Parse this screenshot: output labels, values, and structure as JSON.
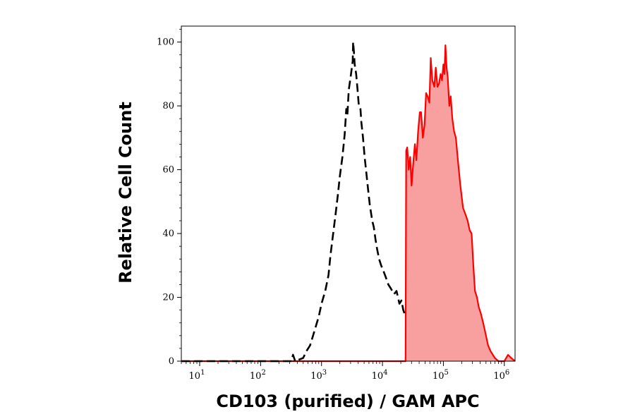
{
  "chart_data": {
    "type": "area",
    "xlabel": "CD103 (purified) / GAM APC",
    "ylabel": "Relative Cell Count",
    "x_scale": "log",
    "xlim": [
      5,
      1500000
    ],
    "ylim": [
      0,
      105
    ],
    "x_tick_labels": [
      {
        "base": "10",
        "exp": "1",
        "value": 10
      },
      {
        "base": "10",
        "exp": "2",
        "value": 100
      },
      {
        "base": "10",
        "exp": "3",
        "value": 1000
      },
      {
        "base": "10",
        "exp": "4",
        "value": 10000
      },
      {
        "base": "10",
        "exp": "5",
        "value": 100000
      },
      {
        "base": "10",
        "exp": "6",
        "value": 1000000
      }
    ],
    "y_ticks": [
      0,
      20,
      40,
      60,
      80,
      100
    ],
    "grid": false,
    "legend": "none",
    "series": [
      {
        "style": "dashed",
        "color": "#000000",
        "filled": false,
        "points": [
          [
            5,
            0
          ],
          [
            320,
            0
          ],
          [
            340,
            2
          ],
          [
            370,
            0
          ],
          [
            500,
            1
          ],
          [
            560,
            3
          ],
          [
            650,
            5
          ],
          [
            780,
            10
          ],
          [
            900,
            14
          ],
          [
            1000,
            18
          ],
          [
            1150,
            22
          ],
          [
            1300,
            27
          ],
          [
            1400,
            33
          ],
          [
            1550,
            40
          ],
          [
            1700,
            46
          ],
          [
            1850,
            52
          ],
          [
            2000,
            58
          ],
          [
            2200,
            64
          ],
          [
            2400,
            71
          ],
          [
            2550,
            79
          ],
          [
            2650,
            77
          ],
          [
            2800,
            85
          ],
          [
            3000,
            89
          ],
          [
            3150,
            92
          ],
          [
            3250,
            94
          ],
          [
            3300,
            100
          ],
          [
            3400,
            97
          ],
          [
            3500,
            93
          ],
          [
            3700,
            90
          ],
          [
            3900,
            85
          ],
          [
            4100,
            80
          ],
          [
            4350,
            79
          ],
          [
            4500,
            75
          ],
          [
            4800,
            70
          ],
          [
            5100,
            64
          ],
          [
            5500,
            58
          ],
          [
            5800,
            54
          ],
          [
            6200,
            49
          ],
          [
            6800,
            44
          ],
          [
            7200,
            42
          ],
          [
            7700,
            38
          ],
          [
            8200,
            35
          ],
          [
            8800,
            32
          ],
          [
            9500,
            30
          ],
          [
            10500,
            28
          ],
          [
            11500,
            26
          ],
          [
            12500,
            24
          ],
          [
            13500,
            23
          ],
          [
            14500,
            22
          ],
          [
            15500,
            21
          ],
          [
            17000,
            22
          ],
          [
            18000,
            20
          ],
          [
            19000,
            18
          ],
          [
            20500,
            19
          ],
          [
            22000,
            16
          ],
          [
            24000,
            14
          ]
        ]
      },
      {
        "style": "solid",
        "color": "#ff0000",
        "fill": "#f8a0a0",
        "filled": true,
        "points": [
          [
            5,
            0
          ],
          [
            23900,
            0
          ],
          [
            24500,
            66
          ],
          [
            25500,
            67
          ],
          [
            27000,
            60
          ],
          [
            28500,
            64
          ],
          [
            30000,
            55
          ],
          [
            32000,
            62
          ],
          [
            34000,
            68
          ],
          [
            36000,
            63
          ],
          [
            38500,
            72
          ],
          [
            41000,
            78
          ],
          [
            43000,
            78
          ],
          [
            46000,
            70
          ],
          [
            49000,
            74
          ],
          [
            52000,
            84
          ],
          [
            55000,
            83
          ],
          [
            59000,
            81
          ],
          [
            62000,
            95
          ],
          [
            66000,
            88
          ],
          [
            71000,
            86
          ],
          [
            75000,
            92
          ],
          [
            80000,
            86
          ],
          [
            85000,
            87
          ],
          [
            90000,
            90
          ],
          [
            95000,
            88
          ],
          [
            100000,
            93
          ],
          [
            104000,
            90
          ],
          [
            108000,
            99
          ],
          [
            113000,
            92
          ],
          [
            118000,
            89
          ],
          [
            125000,
            80
          ],
          [
            132000,
            83
          ],
          [
            140000,
            76
          ],
          [
            150000,
            72
          ],
          [
            160000,
            70
          ],
          [
            175000,
            62
          ],
          [
            190000,
            55
          ],
          [
            210000,
            48
          ],
          [
            230000,
            46
          ],
          [
            250000,
            44
          ],
          [
            270000,
            41
          ],
          [
            290000,
            40
          ],
          [
            310000,
            30
          ],
          [
            330000,
            22
          ],
          [
            355000,
            20
          ],
          [
            380000,
            17
          ],
          [
            410000,
            15
          ],
          [
            450000,
            12
          ],
          [
            500000,
            8
          ],
          [
            540000,
            5
          ],
          [
            600000,
            3
          ],
          [
            700000,
            1
          ],
          [
            800000,
            0
          ],
          [
            1000000,
            0
          ],
          [
            1150000,
            2
          ],
          [
            1300000,
            1
          ],
          [
            1500000,
            0
          ]
        ]
      }
    ]
  }
}
